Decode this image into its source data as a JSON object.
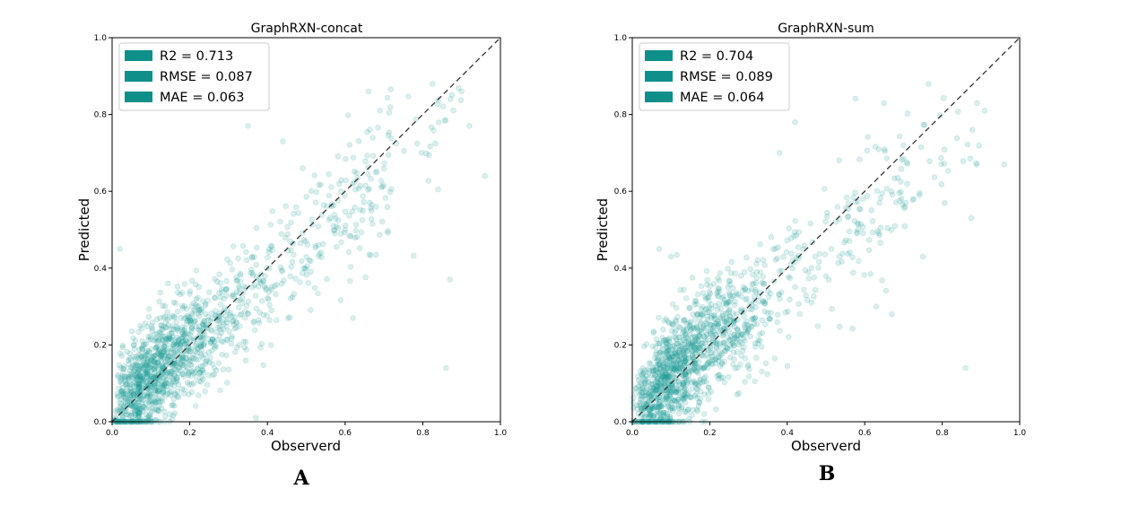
{
  "figure": {
    "panel_labels": [
      "A",
      "B"
    ]
  },
  "chart_data": [
    {
      "type": "scatter",
      "title": "GraphRXN-concat",
      "xlabel": "Observerd",
      "ylabel": "Predicted",
      "xlim": [
        0.0,
        1.0
      ],
      "ylim": [
        0.0,
        1.0
      ],
      "xticks": [
        "0.0",
        "0.2",
        "0.4",
        "0.6",
        "0.8",
        "1.0"
      ],
      "yticks": [
        "0.0",
        "0.2",
        "0.4",
        "0.6",
        "0.8",
        "1.0"
      ],
      "grid": false,
      "legend_position": "top-left",
      "legend": [
        "R2 = 0.713",
        "RMSE = 0.087",
        "MAE = 0.063"
      ],
      "reference_line": {
        "style": "dashed",
        "from": [
          0,
          0
        ],
        "to": [
          1,
          1
        ],
        "color": "#333333"
      },
      "point_color": "#1a9a94",
      "legend_color": "#0e8f8a",
      "n_points": 1400,
      "seed": 17,
      "spread": 0.087,
      "points_outliers": [
        [
          0.66,
          0.86
        ],
        [
          0.9,
          0.86
        ],
        [
          0.69,
          0.81
        ],
        [
          0.92,
          0.77
        ],
        [
          0.96,
          0.64
        ],
        [
          0.86,
          0.14
        ],
        [
          0.62,
          0.27
        ],
        [
          0.37,
          0.01
        ],
        [
          0.02,
          0.45
        ],
        [
          0.35,
          0.77
        ],
        [
          0.44,
          0.73
        ],
        [
          0.87,
          0.37
        ]
      ]
    },
    {
      "type": "scatter",
      "title": "GraphRXN-sum",
      "xlabel": "Observerd",
      "ylabel": "Predicted",
      "xlim": [
        0.0,
        1.0
      ],
      "ylim": [
        0.0,
        1.0
      ],
      "xticks": [
        "0.0",
        "0.2",
        "0.4",
        "0.6",
        "0.8",
        "1.0"
      ],
      "yticks": [
        "0.0",
        "0.2",
        "0.4",
        "0.6",
        "0.8",
        "1.0"
      ],
      "grid": false,
      "legend_position": "top-left",
      "legend": [
        "R2 = 0.704",
        "RMSE = 0.089",
        "MAE = 0.064"
      ],
      "reference_line": {
        "style": "dashed",
        "from": [
          0,
          0
        ],
        "to": [
          1,
          1
        ],
        "color": "#333333"
      },
      "point_color": "#1a9a94",
      "legend_color": "#0e8f8a",
      "n_points": 1400,
      "seed": 29,
      "spread": 0.089,
      "points_outliers": [
        [
          0.65,
          0.83
        ],
        [
          0.89,
          0.83
        ],
        [
          0.91,
          0.81
        ],
        [
          0.96,
          0.67
        ],
        [
          0.86,
          0.14
        ],
        [
          0.42,
          0.78
        ],
        [
          0.38,
          0.7
        ],
        [
          0.1,
          0.43
        ],
        [
          0.07,
          0.45
        ],
        [
          0.63,
          0.3
        ],
        [
          0.67,
          0.28
        ],
        [
          0.75,
          0.43
        ]
      ]
    }
  ]
}
